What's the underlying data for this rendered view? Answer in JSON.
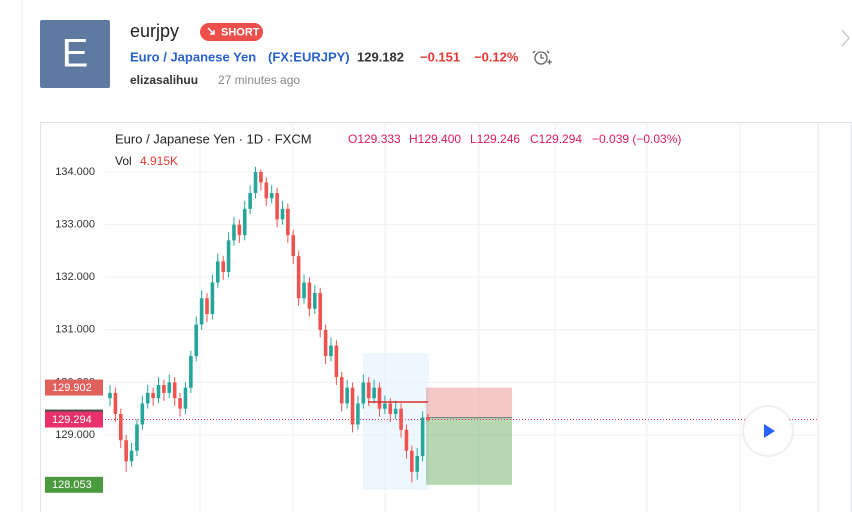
{
  "header": {
    "avatar": "E",
    "symbol": "eurjpy",
    "badge": "SHORT",
    "name": "Euro / Japanese Yen",
    "ticker": "(FX:EURJPY)",
    "price": "129.182",
    "change": "−0.151",
    "change_pct": "−0.12%",
    "author": "elizasalihuu",
    "time": "27 minutes ago"
  },
  "chart_data": {
    "type": "candlestick",
    "title": "Euro / Japanese Yen · 1D · FXCM",
    "legend": {
      "open": "O129.333",
      "high": "H129.400",
      "low": "L129.246",
      "close": "C129.294",
      "change": "−0.039 (−0.03%)",
      "volume_label": "Vol",
      "volume": "4.915K"
    },
    "up_color": "#26a69a",
    "down_color": "#ef5350",
    "open": [
      129.7,
      129.8,
      129.4,
      128.9,
      128.5,
      128.7,
      129.2,
      129.6,
      129.8,
      129.7,
      129.95,
      129.8,
      130.0,
      129.7,
      129.5,
      129.9,
      130.5,
      131.1,
      131.6,
      131.3,
      131.9,
      132.3,
      132.1,
      132.7,
      133.0,
      132.8,
      133.3,
      133.6,
      134.0,
      133.8,
      133.5,
      133.6,
      133.1,
      133.3,
      132.8,
      132.4,
      131.6,
      131.9,
      131.4,
      131.7,
      131.0,
      130.5,
      130.7,
      130.1,
      129.6,
      129.9,
      129.2,
      129.6,
      130.0,
      129.7,
      129.9,
      129.5,
      129.6,
      129.4,
      129.5,
      129.1,
      128.7,
      128.3,
      128.6,
      129.333
    ],
    "high": [
      129.95,
      129.9,
      129.5,
      129.0,
      128.85,
      129.3,
      129.75,
      129.95,
      129.9,
      130.1,
      130.05,
      130.15,
      130.1,
      129.8,
      130.0,
      130.6,
      131.25,
      131.75,
      131.7,
      132.05,
      132.45,
      132.4,
      132.85,
      133.15,
      133.1,
      133.45,
      133.75,
      134.1,
      134.05,
      133.9,
      133.75,
      133.7,
      133.45,
      133.4,
      132.9,
      132.5,
      132.05,
      132.0,
      131.85,
      131.8,
      131.1,
      130.85,
      130.8,
      130.2,
      130.05,
      130.0,
      129.75,
      130.15,
      130.1,
      130.05,
      130.0,
      129.75,
      129.7,
      129.65,
      129.6,
      129.2,
      128.8,
      128.75,
      129.45,
      129.4
    ],
    "low": [
      129.55,
      129.25,
      128.75,
      128.3,
      128.4,
      128.6,
      129.1,
      129.5,
      129.55,
      129.6,
      129.65,
      129.7,
      129.55,
      129.35,
      129.4,
      129.8,
      130.4,
      131.0,
      131.15,
      131.2,
      131.8,
      131.95,
      132.0,
      132.6,
      132.65,
      132.7,
      133.2,
      133.5,
      133.65,
      133.35,
      133.4,
      132.95,
      133.0,
      132.65,
      132.25,
      131.45,
      131.5,
      131.25,
      131.3,
      130.85,
      130.35,
      130.4,
      129.95,
      129.45,
      129.5,
      129.05,
      129.1,
      129.5,
      129.55,
      129.6,
      129.35,
      129.4,
      129.25,
      129.3,
      128.95,
      128.55,
      128.1,
      128.15,
      128.5,
      129.246
    ],
    "close": [
      129.8,
      129.4,
      128.9,
      128.5,
      128.7,
      129.2,
      129.6,
      129.8,
      129.7,
      129.95,
      129.8,
      130.0,
      129.7,
      129.5,
      129.9,
      130.5,
      131.1,
      131.6,
      131.3,
      131.9,
      132.3,
      132.1,
      132.7,
      133.0,
      132.8,
      133.3,
      133.6,
      134.0,
      133.8,
      133.5,
      133.6,
      133.1,
      133.3,
      132.8,
      132.4,
      131.6,
      131.9,
      131.4,
      131.7,
      131.0,
      130.5,
      130.7,
      130.1,
      129.6,
      129.9,
      129.2,
      129.6,
      130.0,
      129.7,
      129.9,
      129.5,
      129.6,
      129.4,
      129.5,
      129.1,
      128.7,
      128.3,
      128.6,
      129.333,
      129.294
    ],
    "ylim": [
      127.536,
      134.951
    ],
    "yticks": [
      {
        "value": 129,
        "label": "129.000"
      },
      {
        "value": 130,
        "label": "130.000"
      },
      {
        "value": 131,
        "label": "131.000"
      },
      {
        "value": 132,
        "label": "132.000"
      },
      {
        "value": 133,
        "label": "133.000"
      },
      {
        "value": 134,
        "label": "134.000"
      }
    ],
    "grid": true,
    "position": {
      "stop": 129.902,
      "entry": 129.331,
      "target": 128.053,
      "stop_color": "#e0605c",
      "entry_color": "#4a4a4a",
      "target_color": "#4c9a3f"
    },
    "last_price": 129.294,
    "last_price_color": "#e8306a"
  }
}
